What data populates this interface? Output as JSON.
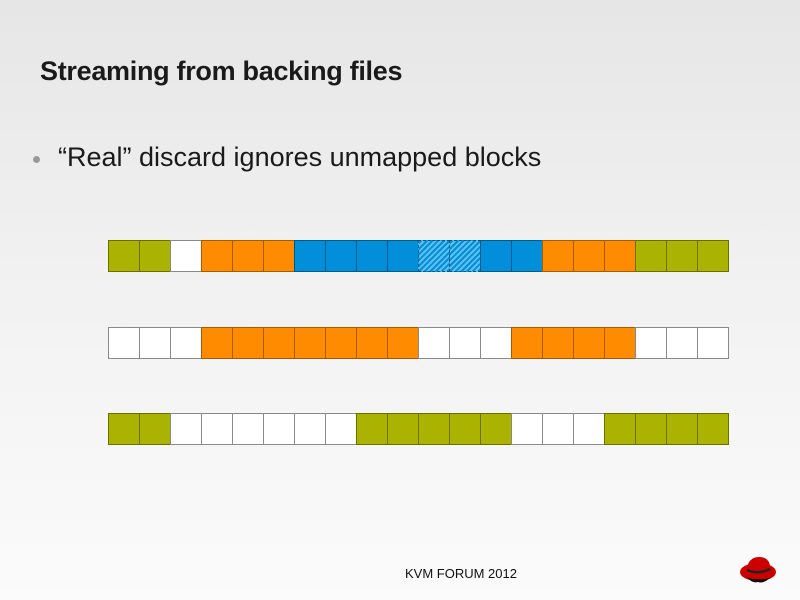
{
  "slide": {
    "title": "Streaming from backing files",
    "bullets": [
      "“Real” discard ignores unmapped blocks"
    ],
    "footer": "KVM FORUM 2012"
  },
  "colors": {
    "G": "#a9b300",
    "O": "#ff8c00",
    "B": "#008fd8",
    "H": "#008fd8 hatched",
    "W": "#ffffff"
  },
  "strips": [
    {
      "cells": [
        "G",
        "G",
        "W",
        "O",
        "O",
        "O",
        "B",
        "B",
        "B",
        "B",
        "H",
        "H",
        "B",
        "B",
        "O",
        "O",
        "O",
        "G",
        "G",
        "G"
      ]
    },
    {
      "cells": [
        "W",
        "W",
        "W",
        "O",
        "O",
        "O",
        "O",
        "O",
        "O",
        "O",
        "W",
        "W",
        "W",
        "O",
        "O",
        "O",
        "O",
        "W",
        "W",
        "W"
      ]
    },
    {
      "cells": [
        "G",
        "G",
        "W",
        "W",
        "W",
        "W",
        "W",
        "W",
        "G",
        "G",
        "G",
        "G",
        "G",
        "W",
        "W",
        "W",
        "G",
        "G",
        "G",
        "G"
      ]
    }
  ],
  "logo": "redhat-shadowman-icon"
}
